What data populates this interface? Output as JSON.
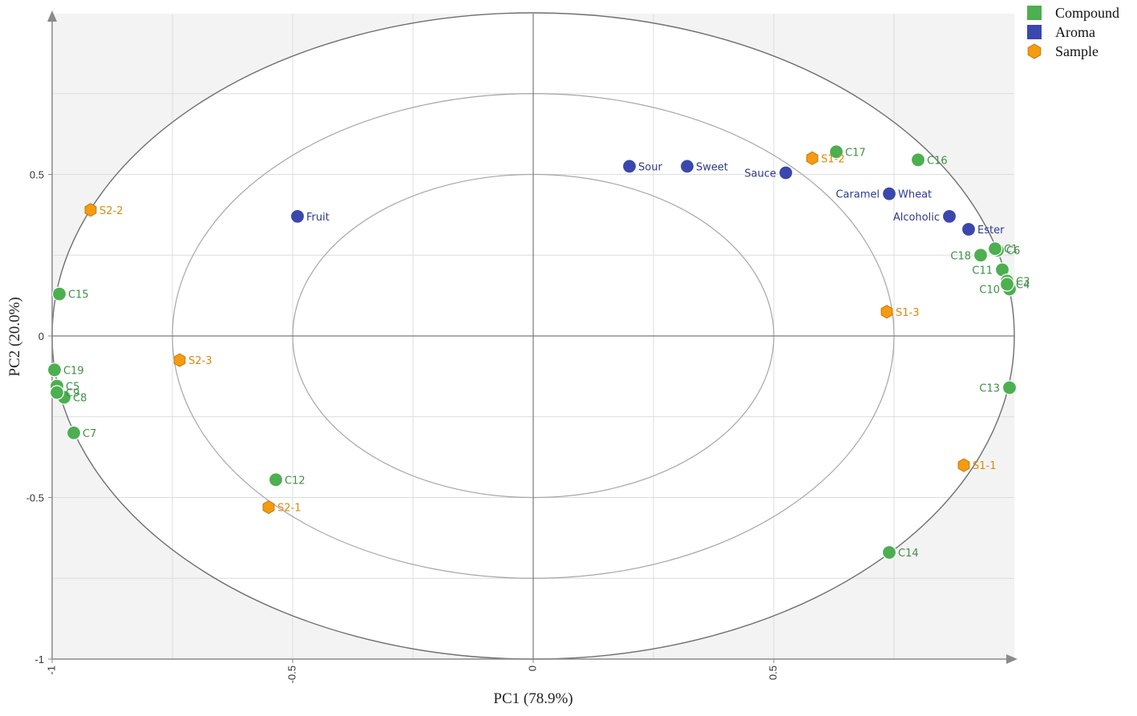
{
  "chart_data": {
    "type": "scatter",
    "title": "",
    "xlabel": "PC1 (78.9%)",
    "ylabel": "PC2 (20.0%)",
    "xlim": [
      -1,
      1
    ],
    "ylim": [
      -1,
      1
    ],
    "x_ticks": [
      "-1",
      "-0.5",
      "0",
      "0.5"
    ],
    "y_ticks": [
      "0.5",
      "0",
      "-0.5",
      "-1"
    ],
    "correlation_circles_r": [
      0.5,
      0.75,
      1.0
    ],
    "legend_position": "top-right",
    "colors": {
      "Compound": "#4caf50",
      "Aroma": "#3a47ad",
      "Sample": "#f59b12"
    },
    "series": [
      {
        "name": "Compound",
        "marker": "circle",
        "points": [
          {
            "label": "C17",
            "x": 0.63,
            "y": 0.57
          },
          {
            "label": "C16",
            "x": 0.8,
            "y": 0.545
          },
          {
            "label": "C15",
            "x": -0.985,
            "y": 0.13
          },
          {
            "label": "C19",
            "x": -0.995,
            "y": -0.105
          },
          {
            "label": "C5",
            "x": -0.99,
            "y": -0.155
          },
          {
            "label": "C8",
            "x": -0.975,
            "y": -0.19
          },
          {
            "label": "C9",
            "x": -0.99,
            "y": -0.175
          },
          {
            "label": "C7",
            "x": -0.955,
            "y": -0.3
          },
          {
            "label": "C12",
            "x": -0.535,
            "y": -0.445
          },
          {
            "label": "C14",
            "x": 0.74,
            "y": -0.67
          },
          {
            "label": "C13",
            "x": 0.99,
            "y": -0.16
          },
          {
            "label": "C18",
            "x": 0.93,
            "y": 0.25
          },
          {
            "label": "C6",
            "x": 0.965,
            "y": 0.265
          },
          {
            "label": "C1",
            "x": 0.96,
            "y": 0.27
          },
          {
            "label": "C11",
            "x": 0.975,
            "y": 0.205
          },
          {
            "label": "C3",
            "x": 0.985,
            "y": 0.17
          },
          {
            "label": "C10",
            "x": 0.99,
            "y": 0.145
          },
          {
            "label": "C4",
            "x": 0.985,
            "y": 0.16
          }
        ]
      },
      {
        "name": "Aroma",
        "marker": "circle",
        "points": [
          {
            "label": "Sour",
            "x": 0.2,
            "y": 0.525
          },
          {
            "label": "Sweet",
            "x": 0.32,
            "y": 0.525
          },
          {
            "label": "Sauce",
            "x": 0.525,
            "y": 0.505
          },
          {
            "label": "Fruit",
            "x": -0.49,
            "y": 0.37
          },
          {
            "label": "Caramel",
            "x": 0.74,
            "y": 0.44
          },
          {
            "label": "Wheat",
            "x": 0.74,
            "y": 0.44
          },
          {
            "label": "Alcoholic",
            "x": 0.865,
            "y": 0.37
          },
          {
            "label": "Ester",
            "x": 0.905,
            "y": 0.33
          }
        ]
      },
      {
        "name": "Sample",
        "marker": "hexagon",
        "points": [
          {
            "label": "S1-2",
            "x": 0.58,
            "y": 0.55
          },
          {
            "label": "S2-2",
            "x": -0.92,
            "y": 0.39
          },
          {
            "label": "S1-3",
            "x": 0.735,
            "y": 0.075
          },
          {
            "label": "S2-3",
            "x": -0.735,
            "y": -0.075
          },
          {
            "label": "S1-1",
            "x": 0.895,
            "y": -0.4
          },
          {
            "label": "S2-1",
            "x": -0.55,
            "y": -0.53
          }
        ]
      }
    ]
  }
}
